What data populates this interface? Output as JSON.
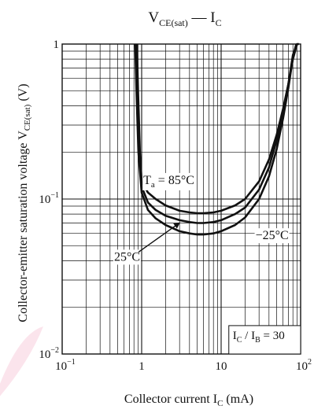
{
  "chart_data": {
    "type": "line",
    "title": {
      "main": "V",
      "sub": "CE(sat)",
      "sep": " — I",
      "sub2": "C"
    },
    "xlabel": {
      "pre": "Collector current  I",
      "sub": "C",
      "post": "  (mA)"
    },
    "ylabel": {
      "pre": "Collector-emitter saturation voltage  V",
      "sub": "CE(sat)",
      "post": "  (V)"
    },
    "x_scale": "log",
    "y_scale": "log",
    "xlim": [
      0.1,
      100
    ],
    "ylim": [
      0.01,
      1
    ],
    "grid": true,
    "x_ticks": [
      {
        "value": 0.1,
        "base": "10",
        "exp": "−1"
      },
      {
        "value": 1,
        "base": "1",
        "exp": ""
      },
      {
        "value": 10,
        "base": "10",
        "exp": ""
      },
      {
        "value": 100,
        "base": "10",
        "exp": "2"
      }
    ],
    "y_ticks": [
      {
        "value": 1,
        "base": "1",
        "exp": ""
      },
      {
        "value": 0.1,
        "base": "10",
        "exp": "−1"
      },
      {
        "value": 0.01,
        "base": "10",
        "exp": "−2"
      }
    ],
    "series": [
      {
        "name": "85°C",
        "x": [
          0.87,
          0.9,
          0.95,
          1.0,
          1.2,
          1.5,
          2,
          3,
          4,
          5,
          6,
          8,
          10,
          15,
          20,
          30,
          40,
          50,
          60,
          70,
          80,
          90,
          95
        ],
        "y": [
          1.0,
          0.5,
          0.2,
          0.13,
          0.11,
          0.1,
          0.091,
          0.084,
          0.082,
          0.081,
          0.081,
          0.082,
          0.084,
          0.091,
          0.1,
          0.13,
          0.18,
          0.26,
          0.38,
          0.55,
          0.8,
          1.0,
          1.0
        ]
      },
      {
        "name": "25°C",
        "x": [
          0.85,
          0.88,
          0.93,
          1.0,
          1.2,
          1.5,
          2,
          3,
          4,
          5,
          6,
          8,
          10,
          15,
          20,
          30,
          40,
          50,
          60,
          70,
          80,
          90
        ],
        "y": [
          1.0,
          0.5,
          0.2,
          0.12,
          0.095,
          0.085,
          0.078,
          0.073,
          0.071,
          0.07,
          0.07,
          0.071,
          0.073,
          0.08,
          0.088,
          0.115,
          0.16,
          0.24,
          0.36,
          0.55,
          0.85,
          1.0
        ]
      },
      {
        "name": "−25°C",
        "x": [
          0.83,
          0.86,
          0.91,
          1.0,
          1.2,
          1.5,
          2,
          3,
          4,
          5,
          6,
          8,
          10,
          15,
          20,
          30,
          40,
          50,
          60,
          70,
          80,
          88
        ],
        "y": [
          1.0,
          0.5,
          0.2,
          0.11,
          0.085,
          0.075,
          0.068,
          0.062,
          0.06,
          0.059,
          0.059,
          0.06,
          0.062,
          0.068,
          0.076,
          0.1,
          0.14,
          0.21,
          0.33,
          0.52,
          0.82,
          1.0
        ]
      }
    ],
    "annotations": {
      "t85": {
        "pre": "T",
        "sub": "a",
        "post": " = 85°C",
        "x": 1.05,
        "y": 0.125
      },
      "t25": {
        "text": "25°C",
        "x": 0.45,
        "y": 0.04,
        "arrow_to": [
          3,
          0.071
        ]
      },
      "tm25": {
        "text": "−25°C",
        "x": 27,
        "y": 0.055
      },
      "ratio": {
        "p1": "I",
        "s1": "C",
        "mid": " / I",
        "s2": "B",
        "post": " = 30",
        "x": 14,
        "y": 0.0125
      }
    }
  }
}
